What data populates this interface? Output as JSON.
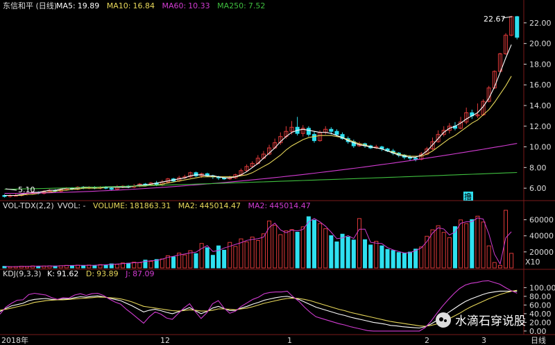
{
  "colors": {
    "up": "#e03a3a",
    "down": "#2fe0f0",
    "ma5": "#ffffff",
    "ma10": "#e8d85a",
    "ma60": "#d23cd2",
    "ma250": "#3fbf3f",
    "grid": "#7a1a1a",
    "axis_text": "#dddddd",
    "yellow": "#e8d85a",
    "magenta": "#d23cd2"
  },
  "price_panel": {
    "title": "东信和平 (日线)",
    "ma5_label": "MA5:",
    "ma5_value": "19.89",
    "ma10_label": "MA10:",
    "ma10_value": "16.84",
    "ma60_label": "MA60:",
    "ma60_value": "10.33",
    "ma250_label": "MA250:",
    "ma250_value": "7.52",
    "high_annotation": "22.67",
    "low_annotation": "5.10",
    "marker": "撸"
  },
  "volume_panel": {
    "title": "VOL-TDX(2,2)",
    "vvol": "VVOL: -",
    "volume_label": "VOLUME:",
    "volume_value": "181863.31",
    "ma2_label": "MA2:",
    "ma2_value": "445014.47",
    "ma2b_label": "MA2:",
    "ma2b_value": "445014.47",
    "scale_note": "X10"
  },
  "kdj_panel": {
    "title": "KDJ(9,3,3)",
    "k_label": "K:",
    "k_value": "91.62",
    "d_label": "D:",
    "d_value": "93.89",
    "j_label": "J:",
    "j_value": "87.09"
  },
  "x_axis": {
    "labels": [
      "2018年",
      "12",
      "1",
      "2",
      "3"
    ],
    "right_label": "日线"
  },
  "watermark": "水滴石穿说股",
  "chart_data": [
    {
      "type": "candlestick",
      "title": "东信和平 (日线)",
      "ylim": [
        5,
        23
      ],
      "yticks": [
        6.0,
        8.0,
        10.0,
        12.0,
        14.0,
        16.0,
        18.0,
        20.0,
        22.0
      ],
      "ytick_labels": [
        "6.00",
        "8.00",
        "10.00",
        "12.00",
        "14.00",
        "16.00",
        "18.00",
        "20.00",
        "22.00"
      ],
      "x_labels": [
        "2018年",
        "12",
        "1",
        "2",
        "3"
      ],
      "candles": [
        [
          5.3,
          5.2,
          5.4,
          5.1
        ],
        [
          5.2,
          5.3,
          5.4,
          5.1
        ],
        [
          5.3,
          5.3,
          5.5,
          5.2
        ],
        [
          5.3,
          5.4,
          5.5,
          5.2
        ],
        [
          5.4,
          5.5,
          5.6,
          5.3
        ],
        [
          5.5,
          5.6,
          5.7,
          5.4
        ],
        [
          5.6,
          5.5,
          5.7,
          5.4
        ],
        [
          5.5,
          5.7,
          5.8,
          5.4
        ],
        [
          5.7,
          5.8,
          5.9,
          5.6
        ],
        [
          5.8,
          5.7,
          5.9,
          5.6
        ],
        [
          5.7,
          5.9,
          6.0,
          5.6
        ],
        [
          5.9,
          6.0,
          6.1,
          5.8
        ],
        [
          6.0,
          5.9,
          6.1,
          5.8
        ],
        [
          5.9,
          6.1,
          6.2,
          5.8
        ],
        [
          6.1,
          6.0,
          6.2,
          5.9
        ],
        [
          6.0,
          6.1,
          6.2,
          5.9
        ],
        [
          6.1,
          6.0,
          6.2,
          5.9
        ],
        [
          6.0,
          6.1,
          6.2,
          5.9
        ],
        [
          6.1,
          6.0,
          6.2,
          5.9
        ],
        [
          6.0,
          5.9,
          6.1,
          5.8
        ],
        [
          5.9,
          6.1,
          6.3,
          5.8
        ],
        [
          6.1,
          6.2,
          6.3,
          6.0
        ],
        [
          6.2,
          6.1,
          6.3,
          6.0
        ],
        [
          6.1,
          6.2,
          6.4,
          6.0
        ],
        [
          6.2,
          6.4,
          6.5,
          6.1
        ],
        [
          6.4,
          6.3,
          6.5,
          6.2
        ],
        [
          6.3,
          6.5,
          6.6,
          6.2
        ],
        [
          6.5,
          6.3,
          6.7,
          6.2
        ],
        [
          6.3,
          6.6,
          6.8,
          6.2
        ],
        [
          6.6,
          6.9,
          7.0,
          6.5
        ],
        [
          6.9,
          6.7,
          7.0,
          6.6
        ],
        [
          6.7,
          7.0,
          7.2,
          6.6
        ],
        [
          7.0,
          7.1,
          7.3,
          6.9
        ],
        [
          7.1,
          7.5,
          7.6,
          7.0
        ],
        [
          7.5,
          7.2,
          7.6,
          7.1
        ],
        [
          7.2,
          7.4,
          7.5,
          7.0
        ],
        [
          7.4,
          7.2,
          7.5,
          7.1
        ],
        [
          7.2,
          7.1,
          7.3,
          6.9
        ],
        [
          7.1,
          7.0,
          7.2,
          6.8
        ],
        [
          7.0,
          6.9,
          7.1,
          6.8
        ],
        [
          6.9,
          7.0,
          7.2,
          6.8
        ],
        [
          7.0,
          7.3,
          7.4,
          6.9
        ],
        [
          7.3,
          7.7,
          7.9,
          7.2
        ],
        [
          7.7,
          8.1,
          8.3,
          7.6
        ],
        [
          8.1,
          8.4,
          8.6,
          8.0
        ],
        [
          8.4,
          8.9,
          9.2,
          8.3
        ],
        [
          8.9,
          9.3,
          9.6,
          8.8
        ],
        [
          9.3,
          9.9,
          10.2,
          9.2
        ],
        [
          9.9,
          10.4,
          10.8,
          9.8
        ],
        [
          10.4,
          11.0,
          11.4,
          10.2
        ],
        [
          11.0,
          11.5,
          12.0,
          10.8
        ],
        [
          11.5,
          11.9,
          12.5,
          11.2
        ],
        [
          11.9,
          11.3,
          12.9,
          11.1
        ],
        [
          11.3,
          11.8,
          12.1,
          11.0
        ],
        [
          11.8,
          11.2,
          12.0,
          11.0
        ],
        [
          11.2,
          10.6,
          11.5,
          10.4
        ],
        [
          10.6,
          11.4,
          11.6,
          10.5
        ],
        [
          11.4,
          11.7,
          12.0,
          11.2
        ],
        [
          11.7,
          11.5,
          11.9,
          11.2
        ],
        [
          11.5,
          11.2,
          11.7,
          11.0
        ],
        [
          11.2,
          10.8,
          11.4,
          10.7
        ],
        [
          10.8,
          10.5,
          11.0,
          10.3
        ],
        [
          10.5,
          10.1,
          10.7,
          9.9
        ],
        [
          10.1,
          10.3,
          10.5,
          10.0
        ],
        [
          10.3,
          10.1,
          10.4,
          9.9
        ],
        [
          10.1,
          9.9,
          10.2,
          9.8
        ],
        [
          9.9,
          10.0,
          10.2,
          9.8
        ],
        [
          10.0,
          9.8,
          10.1,
          9.6
        ],
        [
          9.8,
          9.6,
          9.9,
          9.5
        ],
        [
          9.6,
          9.4,
          9.8,
          9.2
        ],
        [
          9.4,
          9.2,
          9.5,
          9.0
        ],
        [
          9.2,
          9.0,
          9.3,
          8.8
        ],
        [
          9.0,
          8.9,
          9.2,
          8.7
        ],
        [
          8.9,
          8.8,
          9.0,
          8.6
        ],
        [
          8.8,
          9.3,
          9.5,
          8.7
        ],
        [
          9.3,
          9.8,
          10.0,
          9.2
        ],
        [
          9.8,
          10.5,
          10.9,
          9.7
        ],
        [
          10.5,
          11.2,
          11.6,
          10.4
        ],
        [
          11.2,
          11.6,
          12.0,
          11.0
        ],
        [
          11.6,
          12.0,
          12.3,
          11.3
        ],
        [
          12.0,
          11.8,
          12.4,
          11.6
        ],
        [
          11.8,
          12.4,
          12.9,
          11.7
        ],
        [
          12.4,
          13.3,
          13.8,
          12.2
        ],
        [
          13.3,
          13.0,
          13.6,
          12.7
        ],
        [
          13.0,
          13.1,
          14.2,
          12.8
        ],
        [
          13.1,
          14.4,
          14.6,
          13.0
        ],
        [
          14.4,
          15.7,
          15.9,
          14.3
        ],
        [
          15.7,
          17.3,
          17.4,
          15.6
        ],
        [
          17.3,
          19.0,
          19.1,
          17.2
        ],
        [
          19.0,
          20.8,
          21.0,
          18.9
        ],
        [
          20.8,
          22.6,
          22.67,
          20.7
        ],
        [
          22.6,
          20.6,
          22.67,
          20.4
        ]
      ],
      "ma5": [
        5.3,
        5.3,
        5.3,
        5.4,
        5.5,
        5.6,
        5.6,
        5.7,
        5.8,
        5.8,
        5.9,
        6.0,
        6.0,
        6.0,
        6.1,
        6.1,
        6.1,
        6.1,
        6.1,
        6.1,
        6.1,
        6.1,
        6.1,
        6.2,
        6.3,
        6.3,
        6.4,
        6.5,
        6.6,
        6.7,
        6.8,
        6.9,
        7.0,
        7.2,
        7.3,
        7.3,
        7.2,
        7.2,
        7.1,
        7.0,
        7.0,
        7.1,
        7.3,
        7.6,
        8.0,
        8.4,
        8.9,
        9.4,
        9.9,
        10.5,
        11.0,
        11.4,
        11.6,
        11.7,
        11.6,
        11.5,
        11.4,
        11.4,
        11.3,
        11.1,
        10.9,
        10.6,
        10.4,
        10.2,
        10.1,
        10.0,
        9.9,
        9.8,
        9.6,
        9.4,
        9.2,
        9.1,
        9.0,
        9.0,
        9.2,
        9.6,
        10.2,
        10.8,
        11.4,
        11.8,
        12.0,
        12.3,
        12.7,
        13.0,
        13.3,
        13.9,
        14.7,
        15.8,
        17.2,
        18.6,
        19.89
      ],
      "ma10": [
        5.3,
        5.3,
        5.3,
        5.3,
        5.4,
        5.4,
        5.5,
        5.6,
        5.6,
        5.7,
        5.8,
        5.8,
        5.9,
        5.9,
        6.0,
        6.0,
        6.0,
        6.0,
        6.1,
        6.1,
        6.1,
        6.1,
        6.1,
        6.2,
        6.2,
        6.2,
        6.3,
        6.3,
        6.4,
        6.5,
        6.6,
        6.7,
        6.8,
        6.9,
        7.0,
        7.1,
        7.1,
        7.1,
        7.1,
        7.1,
        7.1,
        7.1,
        7.2,
        7.3,
        7.5,
        7.8,
        8.1,
        8.4,
        8.8,
        9.2,
        9.7,
        10.1,
        10.4,
        10.7,
        10.9,
        11.0,
        11.1,
        11.1,
        11.1,
        11.0,
        10.9,
        10.7,
        10.5,
        10.3,
        10.2,
        10.0,
        9.9,
        9.8,
        9.6,
        9.5,
        9.3,
        9.2,
        9.1,
        9.1,
        9.1,
        9.3,
        9.6,
        10.0,
        10.4,
        10.8,
        11.1,
        11.5,
        11.9,
        12.3,
        12.6,
        13.1,
        13.6,
        14.3,
        15.1,
        15.9,
        16.84
      ],
      "ma60_range": [
        5.5,
        10.33
      ],
      "ma250_range": [
        5.9,
        7.52
      ]
    },
    {
      "type": "bar",
      "title": "VOL-TDX(2,2)",
      "unit": "X10",
      "ylim": [
        0,
        70000
      ],
      "yticks": [
        20000,
        40000,
        60000
      ],
      "ytick_labels": [
        "20000",
        "40000",
        "60000"
      ],
      "values": [
        2000,
        1500,
        1800,
        2200,
        1900,
        2500,
        2100,
        2400,
        2600,
        2300,
        2800,
        3200,
        3000,
        3500,
        2900,
        3600,
        3100,
        4200,
        3800,
        5100,
        4600,
        6200,
        5800,
        7200,
        6500,
        9800,
        8200,
        10500,
        11200,
        15200,
        13800,
        18500,
        16200,
        21500,
        17800,
        30500,
        25200,
        15800,
        27500,
        22100,
        31800,
        26800,
        36200,
        32500,
        38500,
        34200,
        42500,
        58500,
        53200,
        41500,
        46200,
        47800,
        44500,
        51200,
        63800,
        59500,
        55300,
        48800,
        40200,
        32500,
        42100,
        38500,
        34800,
        61500,
        35200,
        28600,
        33200,
        27500,
        23100,
        21800,
        19200,
        18200,
        19800,
        23500,
        26200,
        39500,
        47500,
        52600,
        44300,
        37800,
        51500,
        59800,
        55200,
        60200,
        64500,
        57200,
        27500,
        6800,
        3200,
        71800,
        18200
      ],
      "ma2_value": 445014.47,
      "volume_value": 181863.31
    },
    {
      "type": "line",
      "title": "KDJ(9,3,3)",
      "ylim": [
        -5,
        115
      ],
      "yticks": [
        0,
        20,
        40,
        60,
        80,
        100
      ],
      "ytick_labels": [
        "0.00",
        "20.00",
        "40.00",
        "60.00",
        "80.00",
        "100.00"
      ],
      "series": [
        {
          "name": "K",
          "values": [
            45,
            52,
            58,
            61,
            64,
            70,
            73,
            74,
            75,
            73,
            72,
            74,
            74,
            77,
            79,
            78,
            80,
            81,
            79,
            76,
            73,
            70,
            64,
            58,
            51,
            44,
            48,
            50,
            47,
            43,
            40,
            44,
            49,
            54,
            47,
            40,
            45,
            53,
            57,
            52,
            47,
            48,
            53,
            57,
            62,
            66,
            71,
            74,
            77,
            79,
            80,
            77,
            73,
            67,
            61,
            55,
            51,
            47,
            43,
            39,
            36,
            32,
            29,
            26,
            23,
            20,
            18,
            16,
            13,
            12,
            10,
            9,
            8,
            7,
            10,
            16,
            24,
            33,
            42,
            51,
            60,
            68,
            74,
            79,
            84,
            88,
            90,
            92,
            92,
            91.9,
            91.62
          ]
        },
        {
          "name": "D",
          "values": [
            48,
            50,
            53,
            56,
            59,
            62,
            66,
            68,
            70,
            71,
            72,
            72,
            73,
            74,
            75,
            76,
            77,
            78,
            78,
            77,
            76,
            74,
            71,
            67,
            62,
            57,
            55,
            53,
            51,
            49,
            47,
            46,
            47,
            49,
            48,
            46,
            46,
            48,
            51,
            51,
            50,
            49,
            51,
            53,
            56,
            60,
            64,
            67,
            70,
            73,
            75,
            76,
            75,
            73,
            70,
            66,
            62,
            58,
            54,
            50,
            47,
            43,
            40,
            37,
            34,
            31,
            28,
            25,
            22,
            20,
            18,
            16,
            14,
            12,
            11,
            13,
            16,
            21,
            27,
            34,
            41,
            49,
            56,
            62,
            68,
            74,
            79,
            84,
            88,
            91.5,
            93.89
          ]
        },
        {
          "name": "J",
          "values": [
            39,
            55,
            64,
            71,
            72,
            84,
            87,
            85,
            83,
            77,
            73,
            77,
            76,
            83,
            86,
            82,
            86,
            87,
            82,
            74,
            67,
            62,
            50,
            40,
            29,
            18,
            33,
            44,
            39,
            30,
            27,
            40,
            53,
            63,
            45,
            29,
            42,
            63,
            70,
            53,
            41,
            46,
            57,
            65,
            73,
            78,
            86,
            89,
            90,
            90,
            92,
            79,
            69,
            55,
            43,
            33,
            29,
            25,
            21,
            17,
            14,
            10,
            7,
            4,
            1,
            0,
            0,
            0,
            0,
            0,
            0,
            0,
            0,
            0,
            8,
            22,
            40,
            57,
            72,
            86,
            98,
            106,
            110,
            112,
            115,
            116,
            112,
            108,
            100,
            93,
            87.09
          ]
        }
      ]
    }
  ]
}
